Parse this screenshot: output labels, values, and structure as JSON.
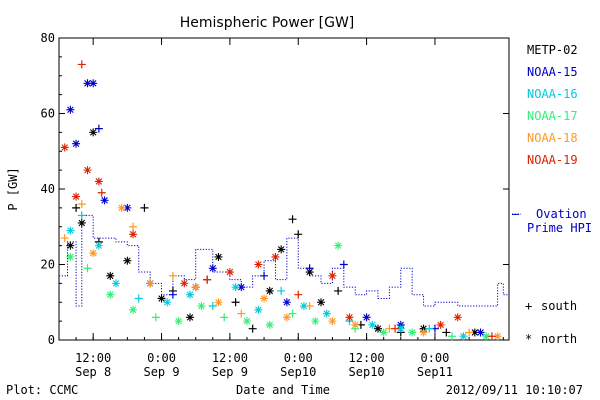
{
  "chart_data": {
    "type": "scatter",
    "title": "Hemispheric Power [GW]",
    "xlabel": "Date and Time",
    "ylabel": "P [GW]",
    "ylim": [
      0,
      80
    ],
    "xlim": [
      "2012-09-08 06:00",
      "2012-09-11 13:00"
    ],
    "x_ticks": [
      {
        "t": "2012-09-08 12:00",
        "label1": "12:00",
        "label2": "Sep 8"
      },
      {
        "t": "2012-09-09 00:00",
        "label1": "0:00",
        "label2": "Sep 9"
      },
      {
        "t": "2012-09-09 12:00",
        "label1": "12:00",
        "label2": "Sep 9"
      },
      {
        "t": "2012-09-10 00:00",
        "label1": "0:00",
        "label2": "Sep10"
      },
      {
        "t": "2012-09-10 12:00",
        "label1": "12:00",
        "label2": "Sep10"
      },
      {
        "t": "2012-09-11 00:00",
        "label1": "0:00",
        "label2": "Sep11"
      }
    ],
    "y_ticks": [
      0,
      20,
      40,
      60,
      80
    ],
    "legend_placement": "right",
    "series": [
      {
        "name": "METP-02",
        "color": "#000000",
        "points": [
          {
            "t": "2012-09-08 08:00",
            "v": 25,
            "m": "north"
          },
          {
            "t": "2012-09-08 09:00",
            "v": 35,
            "m": "south"
          },
          {
            "t": "2012-09-08 10:00",
            "v": 31,
            "m": "north"
          },
          {
            "t": "2012-09-08 12:00",
            "v": 55,
            "m": "north"
          },
          {
            "t": "2012-09-08 13:00",
            "v": 26,
            "m": "south"
          },
          {
            "t": "2012-09-08 15:00",
            "v": 17,
            "m": "north"
          },
          {
            "t": "2012-09-08 18:00",
            "v": 21,
            "m": "north"
          },
          {
            "t": "2012-09-08 21:00",
            "v": 35,
            "m": "south"
          },
          {
            "t": "2012-09-09 00:00",
            "v": 11,
            "m": "north"
          },
          {
            "t": "2012-09-09 02:00",
            "v": 13,
            "m": "south"
          },
          {
            "t": "2012-09-09 05:00",
            "v": 6,
            "m": "north"
          },
          {
            "t": "2012-09-09 08:00",
            "v": 16,
            "m": "south"
          },
          {
            "t": "2012-09-09 10:00",
            "v": 22,
            "m": "north"
          },
          {
            "t": "2012-09-09 13:00",
            "v": 10,
            "m": "south"
          },
          {
            "t": "2012-09-09 16:00",
            "v": 3,
            "m": "south"
          },
          {
            "t": "2012-09-09 19:00",
            "v": 13,
            "m": "north"
          },
          {
            "t": "2012-09-09 21:00",
            "v": 24,
            "m": "north"
          },
          {
            "t": "2012-09-09 23:00",
            "v": 32,
            "m": "south"
          },
          {
            "t": "2012-09-10 00:00",
            "v": 28,
            "m": "south"
          },
          {
            "t": "2012-09-10 02:00",
            "v": 18,
            "m": "north"
          },
          {
            "t": "2012-09-10 04:00",
            "v": 10,
            "m": "north"
          },
          {
            "t": "2012-09-10 07:00",
            "v": 13,
            "m": "south"
          },
          {
            "t": "2012-09-10 11:00",
            "v": 4,
            "m": "south"
          },
          {
            "t": "2012-09-10 14:00",
            "v": 3,
            "m": "north"
          },
          {
            "t": "2012-09-10 18:00",
            "v": 2,
            "m": "south"
          },
          {
            "t": "2012-09-10 22:00",
            "v": 3,
            "m": "north"
          },
          {
            "t": "2012-09-11 02:00",
            "v": 2,
            "m": "south"
          },
          {
            "t": "2012-09-11 07:00",
            "v": 2,
            "m": "north"
          }
        ]
      },
      {
        "name": "NOAA-15",
        "color": "#0000cc",
        "points": [
          {
            "t": "2012-09-08 08:00",
            "v": 61,
            "m": "north"
          },
          {
            "t": "2012-09-08 09:00",
            "v": 52,
            "m": "north"
          },
          {
            "t": "2012-09-08 11:00",
            "v": 68,
            "m": "north"
          },
          {
            "t": "2012-09-08 12:00",
            "v": 68,
            "m": "north"
          },
          {
            "t": "2012-09-08 13:00",
            "v": 56,
            "m": "south"
          },
          {
            "t": "2012-09-08 14:00",
            "v": 37,
            "m": "north"
          },
          {
            "t": "2012-09-08 18:00",
            "v": 35,
            "m": "north"
          },
          {
            "t": "2012-09-08 22:00",
            "v": 15,
            "m": "north"
          },
          {
            "t": "2012-09-09 02:00",
            "v": 12,
            "m": "south"
          },
          {
            "t": "2012-09-09 06:00",
            "v": 14,
            "m": "north"
          },
          {
            "t": "2012-09-09 09:00",
            "v": 19,
            "m": "north"
          },
          {
            "t": "2012-09-09 14:00",
            "v": 14,
            "m": "north"
          },
          {
            "t": "2012-09-09 18:00",
            "v": 17,
            "m": "south"
          },
          {
            "t": "2012-09-09 22:00",
            "v": 10,
            "m": "north"
          },
          {
            "t": "2012-09-10 02:00",
            "v": 19,
            "m": "south"
          },
          {
            "t": "2012-09-10 08:00",
            "v": 20,
            "m": "south"
          },
          {
            "t": "2012-09-10 12:00",
            "v": 6,
            "m": "north"
          },
          {
            "t": "2012-09-10 18:00",
            "v": 4,
            "m": "north"
          },
          {
            "t": "2012-09-11 00:00",
            "v": 3,
            "m": "south"
          },
          {
            "t": "2012-09-11 08:00",
            "v": 2,
            "m": "north"
          }
        ]
      },
      {
        "name": "NOAA-16",
        "color": "#00ccdd",
        "points": [
          {
            "t": "2012-09-08 08:00",
            "v": 29,
            "m": "north"
          },
          {
            "t": "2012-09-08 10:00",
            "v": 33,
            "m": "south"
          },
          {
            "t": "2012-09-08 13:00",
            "v": 25,
            "m": "north"
          },
          {
            "t": "2012-09-08 16:00",
            "v": 15,
            "m": "north"
          },
          {
            "t": "2012-09-08 20:00",
            "v": 11,
            "m": "south"
          },
          {
            "t": "2012-09-09 01:00",
            "v": 10,
            "m": "north"
          },
          {
            "t": "2012-09-09 05:00",
            "v": 12,
            "m": "north"
          },
          {
            "t": "2012-09-09 09:00",
            "v": 9,
            "m": "south"
          },
          {
            "t": "2012-09-09 13:00",
            "v": 14,
            "m": "north"
          },
          {
            "t": "2012-09-09 17:00",
            "v": 8,
            "m": "north"
          },
          {
            "t": "2012-09-09 21:00",
            "v": 13,
            "m": "south"
          },
          {
            "t": "2012-09-10 01:00",
            "v": 9,
            "m": "north"
          },
          {
            "t": "2012-09-10 05:00",
            "v": 7,
            "m": "north"
          },
          {
            "t": "2012-09-10 09:00",
            "v": 5,
            "m": "south"
          },
          {
            "t": "2012-09-10 13:00",
            "v": 4,
            "m": "north"
          },
          {
            "t": "2012-09-10 18:00",
            "v": 3,
            "m": "north"
          },
          {
            "t": "2012-09-10 23:00",
            "v": 3,
            "m": "south"
          },
          {
            "t": "2012-09-11 05:00",
            "v": 1,
            "m": "north"
          }
        ]
      },
      {
        "name": "NOAA-17",
        "color": "#33ee77",
        "points": [
          {
            "t": "2012-09-08 08:00",
            "v": 22,
            "m": "north"
          },
          {
            "t": "2012-09-08 11:00",
            "v": 19,
            "m": "south"
          },
          {
            "t": "2012-09-08 15:00",
            "v": 12,
            "m": "north"
          },
          {
            "t": "2012-09-08 19:00",
            "v": 8,
            "m": "north"
          },
          {
            "t": "2012-09-08 23:00",
            "v": 6,
            "m": "south"
          },
          {
            "t": "2012-09-09 03:00",
            "v": 5,
            "m": "north"
          },
          {
            "t": "2012-09-09 07:00",
            "v": 9,
            "m": "north"
          },
          {
            "t": "2012-09-09 11:00",
            "v": 6,
            "m": "south"
          },
          {
            "t": "2012-09-09 15:00",
            "v": 5,
            "m": "north"
          },
          {
            "t": "2012-09-09 19:00",
            "v": 4,
            "m": "north"
          },
          {
            "t": "2012-09-09 23:00",
            "v": 7,
            "m": "south"
          },
          {
            "t": "2012-09-10 03:00",
            "v": 5,
            "m": "north"
          },
          {
            "t": "2012-09-10 07:00",
            "v": 25,
            "m": "north"
          },
          {
            "t": "2012-09-10 10:00",
            "v": 3,
            "m": "south"
          },
          {
            "t": "2012-09-10 15:00",
            "v": 2,
            "m": "north"
          },
          {
            "t": "2012-09-10 20:00",
            "v": 2,
            "m": "north"
          },
          {
            "t": "2012-09-11 03:00",
            "v": 1,
            "m": "south"
          },
          {
            "t": "2012-09-11 09:00",
            "v": 1,
            "m": "north"
          }
        ]
      },
      {
        "name": "NOAA-18",
        "color": "#ff9922",
        "points": [
          {
            "t": "2012-09-08 07:00",
            "v": 27,
            "m": "south"
          },
          {
            "t": "2012-09-08 10:00",
            "v": 36,
            "m": "south"
          },
          {
            "t": "2012-09-08 12:00",
            "v": 23,
            "m": "north"
          },
          {
            "t": "2012-09-08 17:00",
            "v": 35,
            "m": "north"
          },
          {
            "t": "2012-09-08 19:00",
            "v": 30,
            "m": "south"
          },
          {
            "t": "2012-09-08 22:00",
            "v": 15,
            "m": "north"
          },
          {
            "t": "2012-09-09 02:00",
            "v": 17,
            "m": "south"
          },
          {
            "t": "2012-09-09 06:00",
            "v": 14,
            "m": "north"
          },
          {
            "t": "2012-09-09 10:00",
            "v": 10,
            "m": "north"
          },
          {
            "t": "2012-09-09 14:00",
            "v": 7,
            "m": "south"
          },
          {
            "t": "2012-09-09 18:00",
            "v": 11,
            "m": "north"
          },
          {
            "t": "2012-09-09 22:00",
            "v": 6,
            "m": "north"
          },
          {
            "t": "2012-09-10 02:00",
            "v": 9,
            "m": "south"
          },
          {
            "t": "2012-09-10 06:00",
            "v": 5,
            "m": "north"
          },
          {
            "t": "2012-09-10 10:00",
            "v": 4,
            "m": "north"
          },
          {
            "t": "2012-09-10 16:00",
            "v": 3,
            "m": "south"
          },
          {
            "t": "2012-09-10 22:00",
            "v": 2,
            "m": "north"
          },
          {
            "t": "2012-09-11 06:00",
            "v": 2,
            "m": "south"
          },
          {
            "t": "2012-09-11 11:00",
            "v": 1,
            "m": "north"
          }
        ]
      },
      {
        "name": "NOAA-19",
        "color": "#dd2200",
        "points": [
          {
            "t": "2012-09-08 07:00",
            "v": 51,
            "m": "north"
          },
          {
            "t": "2012-09-08 09:00",
            "v": 38,
            "m": "north"
          },
          {
            "t": "2012-09-08 10:00",
            "v": 73,
            "m": "south"
          },
          {
            "t": "2012-09-08 11:00",
            "v": 45,
            "m": "north"
          },
          {
            "t": "2012-09-08 13:00",
            "v": 42,
            "m": "north"
          },
          {
            "t": "2012-09-08 13:30",
            "v": 39,
            "m": "south"
          },
          {
            "t": "2012-09-08 19:00",
            "v": 28,
            "m": "north"
          },
          {
            "t": "2012-09-09 04:00",
            "v": 15,
            "m": "north"
          },
          {
            "t": "2012-09-09 08:00",
            "v": 16,
            "m": "south"
          },
          {
            "t": "2012-09-09 12:00",
            "v": 18,
            "m": "north"
          },
          {
            "t": "2012-09-09 17:00",
            "v": 20,
            "m": "north"
          },
          {
            "t": "2012-09-09 20:00",
            "v": 22,
            "m": "north"
          },
          {
            "t": "2012-09-10 00:00",
            "v": 12,
            "m": "south"
          },
          {
            "t": "2012-09-10 06:00",
            "v": 17,
            "m": "north"
          },
          {
            "t": "2012-09-10 09:00",
            "v": 6,
            "m": "north"
          },
          {
            "t": "2012-09-10 17:00",
            "v": 3,
            "m": "south"
          },
          {
            "t": "2012-09-11 01:00",
            "v": 4,
            "m": "north"
          },
          {
            "t": "2012-09-11 04:00",
            "v": 6,
            "m": "north"
          },
          {
            "t": "2012-09-11 10:00",
            "v": 1,
            "m": "south"
          }
        ]
      }
    ],
    "ovation": {
      "name": "Ovation Prime HPI",
      "color": "#0000cc",
      "steps": [
        {
          "t": "2012-09-08 06:00",
          "v": 17
        },
        {
          "t": "2012-09-08 07:30",
          "v": 26
        },
        {
          "t": "2012-09-08 09:00",
          "v": 9
        },
        {
          "t": "2012-09-08 10:00",
          "v": 33
        },
        {
          "t": "2012-09-08 12:00",
          "v": 27
        },
        {
          "t": "2012-09-08 14:00",
          "v": 27
        },
        {
          "t": "2012-09-08 16:00",
          "v": 26
        },
        {
          "t": "2012-09-08 18:00",
          "v": 25
        },
        {
          "t": "2012-09-08 20:00",
          "v": 18
        },
        {
          "t": "2012-09-08 22:00",
          "v": 15
        },
        {
          "t": "2012-09-09 00:00",
          "v": 12
        },
        {
          "t": "2012-09-09 02:00",
          "v": 17
        },
        {
          "t": "2012-09-09 04:00",
          "v": 16
        },
        {
          "t": "2012-09-09 06:00",
          "v": 24
        },
        {
          "t": "2012-09-09 09:00",
          "v": 18
        },
        {
          "t": "2012-09-09 12:00",
          "v": 16
        },
        {
          "t": "2012-09-09 14:00",
          "v": 14
        },
        {
          "t": "2012-09-09 16:00",
          "v": 17
        },
        {
          "t": "2012-09-09 18:00",
          "v": 21
        },
        {
          "t": "2012-09-09 20:00",
          "v": 16
        },
        {
          "t": "2012-09-09 22:00",
          "v": 27
        },
        {
          "t": "2012-09-10 00:00",
          "v": 19
        },
        {
          "t": "2012-09-10 02:00",
          "v": 17
        },
        {
          "t": "2012-09-10 04:00",
          "v": 15
        },
        {
          "t": "2012-09-10 06:00",
          "v": 19
        },
        {
          "t": "2012-09-10 08:00",
          "v": 14
        },
        {
          "t": "2012-09-10 10:00",
          "v": 12
        },
        {
          "t": "2012-09-10 12:00",
          "v": 13
        },
        {
          "t": "2012-09-10 14:00",
          "v": 11
        },
        {
          "t": "2012-09-10 16:00",
          "v": 14
        },
        {
          "t": "2012-09-10 18:00",
          "v": 19
        },
        {
          "t": "2012-09-10 20:00",
          "v": 12
        },
        {
          "t": "2012-09-10 22:00",
          "v": 9
        },
        {
          "t": "2012-09-11 00:00",
          "v": 10
        },
        {
          "t": "2012-09-11 04:00",
          "v": 9
        },
        {
          "t": "2012-09-11 11:00",
          "v": 15
        },
        {
          "t": "2012-09-11 12:00",
          "v": 12
        },
        {
          "t": "2012-09-11 13:00",
          "v": 12
        }
      ]
    },
    "markers": {
      "south": "+",
      "north": "*"
    }
  },
  "legend": {
    "items": [
      {
        "label": "METP-02",
        "color": "#000000"
      },
      {
        "label": "NOAA-15",
        "color": "#0000cc"
      },
      {
        "label": "NOAA-16",
        "color": "#00ccdd"
      },
      {
        "label": "NOAA-17",
        "color": "#33ee77"
      },
      {
        "label": "NOAA-18",
        "color": "#ff9922"
      },
      {
        "label": "NOAA-19",
        "color": "#dd2200"
      }
    ],
    "ovation_dash": "–",
    "ovation_line1": "Ovation",
    "ovation_line2": "Prime HPI",
    "south_symbol": "+",
    "south_label": "south",
    "north_symbol": "*",
    "north_label": "north"
  },
  "footer": {
    "left": "Plot: CCMC",
    "right": "2012/09/11 10:10:07"
  }
}
